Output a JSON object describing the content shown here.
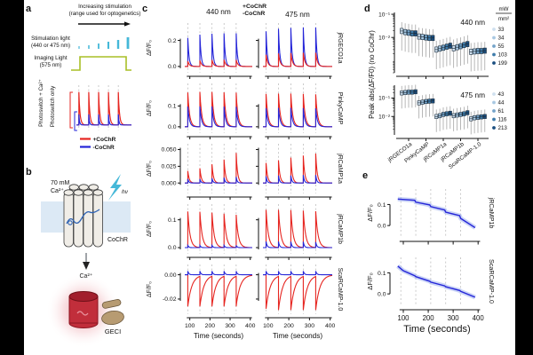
{
  "colors": {
    "plus_cochr_red": "#e62520",
    "minus_cochr_blue": "#2525d8",
    "stimulation_cyan": "#45b8d8",
    "imaging_green": "#a9bf27",
    "dashed_gray": "#bdbdbd",
    "box_blues": [
      "#cfe0ef",
      "#a8c8e2",
      "#74a3c9",
      "#3f7cab",
      "#1b4f80"
    ],
    "membrane_blue": "#dce9f5",
    "geci_red": "#c12e3b",
    "tan": "#b79b72"
  },
  "panel_a": {
    "label": "a",
    "arrow_title": [
      "Increasing stimulation",
      "(range used for optogenetics)"
    ],
    "stim_light_label": [
      "Stimulation light",
      "(440 or 475 nm)"
    ],
    "imaging_light_label": [
      "Imaging Light",
      "(575 nm)"
    ],
    "red_axis_label": "Photoswitch + Ca²⁺",
    "blue_axis_label": "Photoswitch only",
    "legend": [
      {
        "label": "+CoChR"
      },
      {
        "label": "-CoChR"
      }
    ],
    "stim_tick_heights": [
      3,
      4,
      6,
      8,
      10,
      13
    ]
  },
  "panel_b": {
    "label": "b",
    "ca_concentration": [
      "70 mM",
      "Ca²⁺"
    ],
    "light_label": "hν",
    "channel_label": "CoChR",
    "ion_label": "Ca²⁺",
    "sensor_label": "GECI"
  },
  "panel_c": {
    "label": "c",
    "legend": [
      "+CoChR",
      "-CoChR"
    ],
    "column_titles": [
      "440 nm",
      "475 nm"
    ],
    "ylabel": "ΔF/F₀",
    "xlabel": "Time (seconds)"
  },
  "panel_d": {
    "label": "d",
    "ylabel": "Peak abs(ΔF/F0) (no CoChr)",
    "unit_numerator": "mW",
    "unit_denominator": "mm²"
  },
  "panel_e": {
    "label": "e",
    "ylabel": "ΔF/F₀",
    "xlabel": "Time (seconds)"
  },
  "chart_data": [
    {
      "id": "a-schematic-trace",
      "type": "line",
      "x_range": [
        75,
        410
      ],
      "stim_times": [
        90,
        150,
        210,
        270,
        330
      ],
      "ylim": [
        -0.06,
        1.15
      ],
      "series": [
        {
          "name": "+CoChR",
          "key": "red",
          "peaks": [
            1,
            1,
            1,
            1,
            1
          ],
          "tau": 7
        },
        {
          "name": "-CoChR",
          "key": "blue",
          "peaks": [
            0.32,
            0.32,
            0.32,
            0.32,
            0.32
          ],
          "tau": 4
        }
      ]
    },
    {
      "id": "c-trace-grid",
      "type": "line",
      "title_columns": [
        "440 nm",
        "475 nm"
      ],
      "x_range": [
        75,
        410
      ],
      "stim_times": [
        90,
        150,
        210,
        270,
        330
      ],
      "xticks": [
        100,
        200,
        300,
        400
      ],
      "xlabel": "Time (seconds)",
      "ylabel": "ΔF/F₀",
      "rows": [
        {
          "indicator": "jRGECO1a",
          "ylim": [
            -0.035,
            0.32
          ],
          "yticks": [
            0,
            0.2
          ],
          "ytick_labels": [
            "0.0",
            "0.2"
          ],
          "tau": 8,
          "blue_tau": 6,
          "front": "red",
          "cols": [
            {
              "wavelength": "440 nm",
              "red_peaks": [
                0.04,
                0.047,
                0.05,
                0.051,
                0.051
              ],
              "blue_peaks": [
                0.22,
                0.245,
                0.252,
                0.255,
                0.255
              ]
            },
            {
              "wavelength": "475 nm",
              "red_peaks": [
                0.09,
                0.1,
                0.103,
                0.105,
                0.105
              ],
              "blue_peaks": [
                0.27,
                0.29,
                0.297,
                0.3,
                0.3
              ]
            }
          ]
        },
        {
          "indicator": "PinkyCaMP",
          "ylim": [
            -0.022,
            0.2
          ],
          "yticks": [
            0,
            0.1
          ],
          "ytick_labels": [
            "0.0",
            "0.1"
          ],
          "tau": 9,
          "blue_tau": 8,
          "front": "blue",
          "cols": [
            {
              "wavelength": "440 nm",
              "red_peaks": [
                0.165,
                0.168,
                0.168,
                0.166,
                0.164
              ],
              "blue_peaks": [
                0.097,
                0.098,
                0.098,
                0.097,
                0.096
              ]
            },
            {
              "wavelength": "475 nm",
              "red_peaks": [
                0.158,
                0.16,
                0.16,
                0.158,
                0.156
              ],
              "blue_peaks": [
                0.09,
                0.091,
                0.091,
                0.09,
                0.089
              ]
            }
          ]
        },
        {
          "indicator": "jRCaMP1a",
          "ylim": [
            -0.013,
            0.056
          ],
          "yticks": [
            0,
            0.025,
            0.05
          ],
          "ytick_labels": [
            "0.000",
            "0.025",
            "0.050"
          ],
          "tau": 7,
          "blue_tau": 5,
          "front": "blue",
          "cols": [
            {
              "wavelength": "440 nm",
              "red_peaks": [
                0.018,
                0.022,
                0.028,
                0.035,
                0.045
              ],
              "blue_peaks": [
                0.006,
                0.006,
                0.007,
                0.008,
                0.009
              ]
            },
            {
              "wavelength": "475 nm",
              "red_peaks": [
                0.03,
                0.034,
                0.038,
                0.041,
                0.044
              ],
              "blue_peaks": [
                0.01,
                0.011,
                0.011,
                0.012,
                0.012
              ]
            }
          ]
        },
        {
          "indicator": "jRCaMP1b",
          "ylim": [
            -0.016,
            0.15
          ],
          "yticks": [
            0,
            0.1
          ],
          "ytick_labels": [
            "0.0",
            "0.1"
          ],
          "tau": 11,
          "blue_tau": 5,
          "front": "blue",
          "cols": [
            {
              "wavelength": "440 nm",
              "red_peaks": [
                0.13,
                0.129,
                0.126,
                0.122,
                0.118
              ],
              "blue_peaks": [
                0.008,
                0.008,
                0.008,
                0.008,
                0.008
              ]
            },
            {
              "wavelength": "475 nm",
              "red_peaks": [
                0.136,
                0.136,
                0.135,
                0.133,
                0.131
              ],
              "blue_peaks": [
                0.022,
                0.022,
                0.021,
                0.021,
                0.02
              ]
            }
          ]
        },
        {
          "indicator": "ScaRCaMP-1.0",
          "ylim": [
            -0.031,
            0.007
          ],
          "yticks": [
            -0.02,
            0
          ],
          "ytick_labels": [
            "-0.02",
            "0.00"
          ],
          "tau": 20,
          "blue_tau": 5,
          "front": "blue",
          "cols": [
            {
              "wavelength": "440 nm",
              "red_peaks": [
                -0.026,
                -0.026,
                -0.026,
                -0.026,
                -0.026
              ],
              "blue_peaks": [
                0.003,
                0.003,
                0.003,
                0.003,
                0.003
              ]
            },
            {
              "wavelength": "475 nm",
              "red_peaks": [
                -0.028,
                -0.029,
                -0.029,
                -0.029,
                -0.029
              ],
              "blue_peaks": [
                0.003,
                0.003,
                0.003,
                0.003,
                0.003
              ]
            }
          ]
        }
      ]
    },
    {
      "id": "d-box-440",
      "type": "box",
      "title": "440 nm",
      "ylog": true,
      "ylim": [
        0.0003,
        0.12
      ],
      "yticks": [
        0.1,
        0.01
      ],
      "ytick_labels": [
        "10⁻¹",
        "10⁻²"
      ],
      "categories": [
        "jRGECO1a",
        "PinkyCaMP",
        "jRCaMP1a",
        "jRCaMP1b",
        "ScaRCaMP-1.0"
      ],
      "intensities_mw_mm2": [
        33,
        34,
        55,
        103,
        199
      ],
      "medians": [
        [
          0.019,
          0.017,
          0.016,
          0.015,
          0.015
        ],
        [
          0.011,
          0.0105,
          0.01,
          0.0095,
          0.0095
        ],
        [
          0.003,
          0.0033,
          0.0036,
          0.004,
          0.0044
        ],
        [
          0.0034,
          0.0038,
          0.0042,
          0.0047,
          0.0052
        ],
        [
          0.0024,
          0.0025,
          0.0026,
          0.0026,
          0.0027
        ]
      ],
      "box_factor": 1.3,
      "whisker_low_factor": 7,
      "whisker_high_factor": 2.4
    },
    {
      "id": "d-box-475",
      "type": "box",
      "title": "475 nm",
      "ylog": true,
      "ylim": [
        0.001,
        0.5
      ],
      "yticks": [
        0.1,
        0.01
      ],
      "ytick_labels": [
        "10⁻¹",
        "10⁻²"
      ],
      "categories": [
        "jRGECO1a",
        "PinkyCaMP",
        "jRCaMP1a",
        "jRCaMP1b",
        "ScaRCaMP-1.0"
      ],
      "intensities_mw_mm2": [
        43,
        44,
        61,
        116,
        213
      ],
      "medians": [
        [
          0.19,
          0.2,
          0.21,
          0.21,
          0.22
        ],
        [
          0.055,
          0.06,
          0.065,
          0.068,
          0.07
        ],
        [
          0.01,
          0.011,
          0.013,
          0.014,
          0.015
        ],
        [
          0.011,
          0.012,
          0.013,
          0.014,
          0.016
        ],
        [
          0.0075,
          0.0085,
          0.009,
          0.0095,
          0.01
        ]
      ],
      "box_factor": 1.3,
      "whisker_low_factor": 7,
      "whisker_high_factor": 2.4
    },
    {
      "id": "e-photobleach",
      "type": "line",
      "x_range": [
        75,
        410
      ],
      "stim_times": [
        90,
        150,
        210,
        270,
        330
      ],
      "xticks": [
        100,
        200,
        300,
        400
      ],
      "xlabel": "Time (seconds)",
      "plots": [
        {
          "indicator": "jRCaMP1b",
          "ylim": [
            -0.05,
            0.165
          ],
          "yticks": [
            0,
            0.1
          ],
          "ytick_labels": [
            "0.0",
            "0.1"
          ],
          "points": [
            [
              78,
              0.126
            ],
            [
              146,
              0.12
            ],
            [
              150,
              0.111
            ],
            [
              206,
              0.098
            ],
            [
              210,
              0.09
            ],
            [
              266,
              0.074
            ],
            [
              270,
              0.064
            ],
            [
              326,
              0.047
            ],
            [
              330,
              0.034
            ],
            [
              388,
              -0.01
            ]
          ]
        },
        {
          "indicator": "ScaRCaMP-1.0",
          "ylim": [
            -0.05,
            0.165
          ],
          "yticks": [
            0,
            0.1
          ],
          "ytick_labels": [
            "0.0",
            "0.1"
          ],
          "points": [
            [
              78,
              0.132
            ],
            [
              100,
              0.11
            ],
            [
              146,
              0.086
            ],
            [
              150,
              0.082
            ],
            [
              206,
              0.06
            ],
            [
              210,
              0.056
            ],
            [
              266,
              0.038
            ],
            [
              270,
              0.034
            ],
            [
              326,
              0.016
            ],
            [
              330,
              0.012
            ],
            [
              388,
              -0.016
            ]
          ]
        }
      ]
    }
  ]
}
